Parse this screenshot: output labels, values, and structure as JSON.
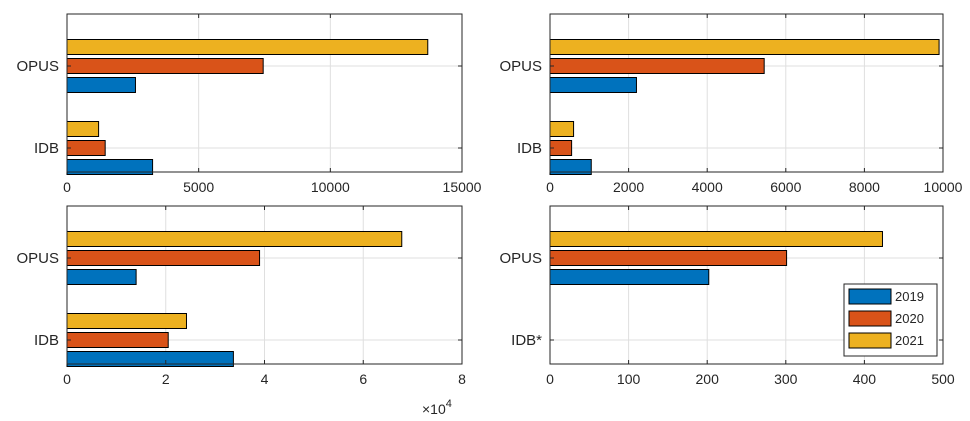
{
  "colors": {
    "2019": "#0072BD",
    "2020": "#D95319",
    "2021": "#EDB120"
  },
  "legend": {
    "placement": "bottom-right of bottom-right panel",
    "entries": [
      "2019",
      "2020",
      "2021"
    ]
  },
  "chart_data": [
    {
      "type": "bar",
      "orientation": "horizontal",
      "grid": true,
      "categories": [
        "OPUS",
        "IDB"
      ],
      "xlim": [
        0,
        15000
      ],
      "xticks": [
        0,
        5000,
        10000,
        15000
      ],
      "xtick_labels": [
        "0",
        "5000",
        "10000",
        "15000"
      ],
      "exponent_label": "",
      "series": [
        {
          "name": "2019",
          "values": [
            2600,
            3250
          ]
        },
        {
          "name": "2020",
          "values": [
            7450,
            1450
          ]
        },
        {
          "name": "2021",
          "values": [
            13700,
            1200
          ]
        }
      ]
    },
    {
      "type": "bar",
      "orientation": "horizontal",
      "grid": true,
      "categories": [
        "OPUS",
        "IDB"
      ],
      "xlim": [
        0,
        10000
      ],
      "xticks": [
        0,
        2000,
        4000,
        6000,
        8000,
        10000
      ],
      "xtick_labels": [
        "0",
        "2000",
        "4000",
        "6000",
        "8000",
        "10000"
      ],
      "exponent_label": "",
      "series": [
        {
          "name": "2019",
          "values": [
            2200,
            1050
          ]
        },
        {
          "name": "2020",
          "values": [
            5450,
            550
          ]
        },
        {
          "name": "2021",
          "values": [
            9900,
            600
          ]
        }
      ]
    },
    {
      "type": "bar",
      "orientation": "horizontal",
      "grid": true,
      "categories": [
        "OPUS",
        "IDB"
      ],
      "xlim": [
        0,
        80000
      ],
      "xticks": [
        0,
        20000,
        40000,
        60000,
        80000
      ],
      "xtick_labels": [
        "0",
        "2",
        "4",
        "6",
        "8"
      ],
      "exponent_label": "×10^4",
      "exponent_base": "×10",
      "exponent_power": "4",
      "series": [
        {
          "name": "2019",
          "values": [
            14000,
            33700
          ]
        },
        {
          "name": "2020",
          "values": [
            39000,
            20500
          ]
        },
        {
          "name": "2021",
          "values": [
            67800,
            24200
          ]
        }
      ]
    },
    {
      "type": "bar",
      "orientation": "horizontal",
      "grid": true,
      "categories": [
        "OPUS",
        "IDB*"
      ],
      "xlim": [
        0,
        500
      ],
      "xticks": [
        0,
        100,
        200,
        300,
        400,
        500
      ],
      "xtick_labels": [
        "0",
        "100",
        "200",
        "300",
        "400",
        "500"
      ],
      "exponent_label": "",
      "series": [
        {
          "name": "2019",
          "values": [
            202,
            0
          ]
        },
        {
          "name": "2020",
          "values": [
            301,
            0
          ]
        },
        {
          "name": "2021",
          "values": [
            423,
            0
          ]
        }
      ]
    }
  ]
}
